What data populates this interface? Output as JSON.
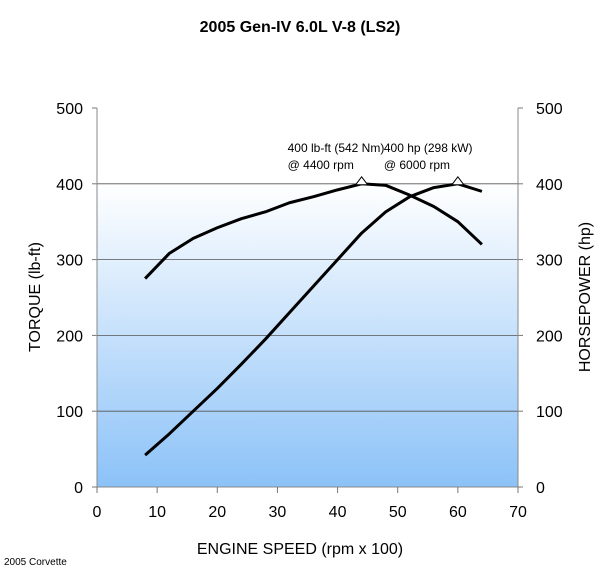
{
  "chart_data": {
    "type": "line",
    "title": "2005 Gen-IV 6.0L V-8 (LS2)",
    "xlabel": "ENGINE SPEED (rpm x 100)",
    "ylabel": "TORQUE (lb-ft)",
    "y2label": "HORSEPOWER (hp)",
    "xlim": [
      0,
      70
    ],
    "ylim": [
      0,
      500
    ],
    "y2lim": [
      0,
      500
    ],
    "xticks": [
      0,
      10,
      20,
      30,
      40,
      50,
      60,
      70
    ],
    "yticks": [
      0,
      100,
      200,
      300,
      400,
      500
    ],
    "grid": true,
    "x": [
      8,
      12,
      16,
      20,
      24,
      28,
      32,
      36,
      40,
      44,
      48,
      52,
      56,
      60,
      64
    ],
    "series": [
      {
        "name": "Torque",
        "axis": "left",
        "values": [
          275,
          308,
          328,
          342,
          354,
          363,
          375,
          383,
          392,
          400,
          398,
          385,
          370,
          350,
          320
        ]
      },
      {
        "name": "Horsepower",
        "axis": "right",
        "values": [
          42,
          70,
          100,
          130,
          162,
          195,
          230,
          265,
          300,
          335,
          363,
          383,
          395,
          400,
          390
        ]
      }
    ],
    "annotations": [
      {
        "x": 44,
        "y": 400,
        "line1": "400 lb-ft (542 Nm)",
        "line2": "@ 4400 rpm"
      },
      {
        "x": 60,
        "y": 400,
        "line1": "400 hp (298 kW)",
        "line2": "@ 6000 rpm"
      }
    ],
    "footnote": "2005 Corvette",
    "colors": {
      "gradient_top": "#ffffff",
      "gradient_bottom": "#8cc2f8",
      "line": "#000000",
      "grid": "#555555"
    }
  }
}
